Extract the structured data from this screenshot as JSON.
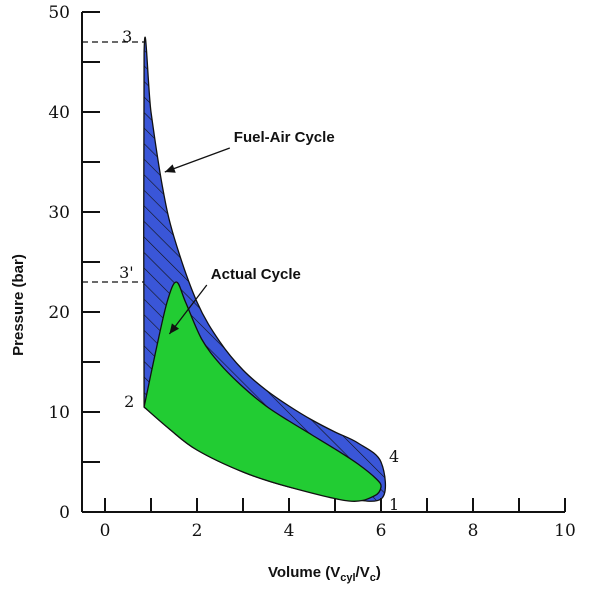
{
  "chart_data": {
    "type": "area",
    "xlabel": "Volume (V",
    "xlabel_sub1": "cyl",
    "xlabel_mid": "/V",
    "xlabel_sub2": "c",
    "xlabel_end": ")",
    "ylabel": "Pressure (bar)",
    "xlim": [
      -0.5,
      10
    ],
    "ylim": [
      0,
      50
    ],
    "xticks": [
      0,
      2,
      4,
      6,
      8,
      10
    ],
    "xticks_minor": [
      1,
      3,
      5,
      7,
      9
    ],
    "yticks": [
      0,
      10,
      20,
      30,
      40,
      50
    ],
    "yticks_minor": [
      5,
      15,
      25,
      35,
      45
    ],
    "grid": false,
    "colors": {
      "fuel_air": "#3a56d8",
      "actual": "#22cc33",
      "hatch": "#111111"
    },
    "series": [
      {
        "name": "Fuel-Air Cycle",
        "points": [
          [
            0.85,
            10.5
          ],
          [
            0.85,
            46
          ],
          [
            1,
            40
          ],
          [
            1.25,
            32.5
          ],
          [
            1.5,
            27.5
          ],
          [
            2,
            21
          ],
          [
            2.5,
            17
          ],
          [
            3,
            14.2
          ],
          [
            3.5,
            12.2
          ],
          [
            4,
            10.6
          ],
          [
            4.5,
            9.2
          ],
          [
            5,
            8.0
          ],
          [
            5.5,
            6.9
          ],
          [
            6,
            5.0
          ],
          [
            6,
            1.3
          ],
          [
            5,
            1.6
          ],
          [
            4,
            2.5
          ],
          [
            3,
            4.0
          ],
          [
            2,
            6.2
          ],
          [
            1.4,
            8.3
          ],
          [
            0.85,
            10.5
          ]
        ]
      },
      {
        "name": "Actual Cycle",
        "points": [
          [
            0.85,
            10.5
          ],
          [
            1.1,
            16
          ],
          [
            1.35,
            21
          ],
          [
            1.55,
            23
          ],
          [
            1.75,
            21
          ],
          [
            2.1,
            17.3
          ],
          [
            2.5,
            14.8
          ],
          [
            3,
            12.5
          ],
          [
            3.5,
            10.6
          ],
          [
            4,
            9.1
          ],
          [
            4.5,
            7.7
          ],
          [
            5,
            6.3
          ],
          [
            5.5,
            4.8
          ],
          [
            5.9,
            3.3
          ],
          [
            6,
            2.5
          ],
          [
            5.85,
            1.6
          ],
          [
            5.3,
            1.1
          ],
          [
            4,
            2.5
          ],
          [
            3,
            4.0
          ],
          [
            2,
            6.2
          ],
          [
            1.4,
            8.3
          ],
          [
            0.85,
            10.5
          ]
        ]
      }
    ],
    "guides": [
      {
        "label": "3",
        "x": 0.85,
        "y": 47
      },
      {
        "label": "3'",
        "x": 1.55,
        "y": 23
      }
    ],
    "state_points": [
      {
        "label": "3",
        "x": 0.85,
        "y": 47
      },
      {
        "label": "3'",
        "x": 0.85,
        "y": 23
      },
      {
        "label": "2",
        "x": 0.85,
        "y": 10.5
      },
      {
        "label": "4",
        "x": 6,
        "y": 5
      },
      {
        "label": "1",
        "x": 6,
        "y": 1
      }
    ],
    "annotations": [
      {
        "text": "Fuel-Air Cycle",
        "x": 1.3,
        "y": 34,
        "text_x": 2.8,
        "text_y": 37
      },
      {
        "text": "Actual Cycle",
        "x": 1.4,
        "y": 17.8,
        "text_x": 2.3,
        "text_y": 23.3
      }
    ]
  }
}
